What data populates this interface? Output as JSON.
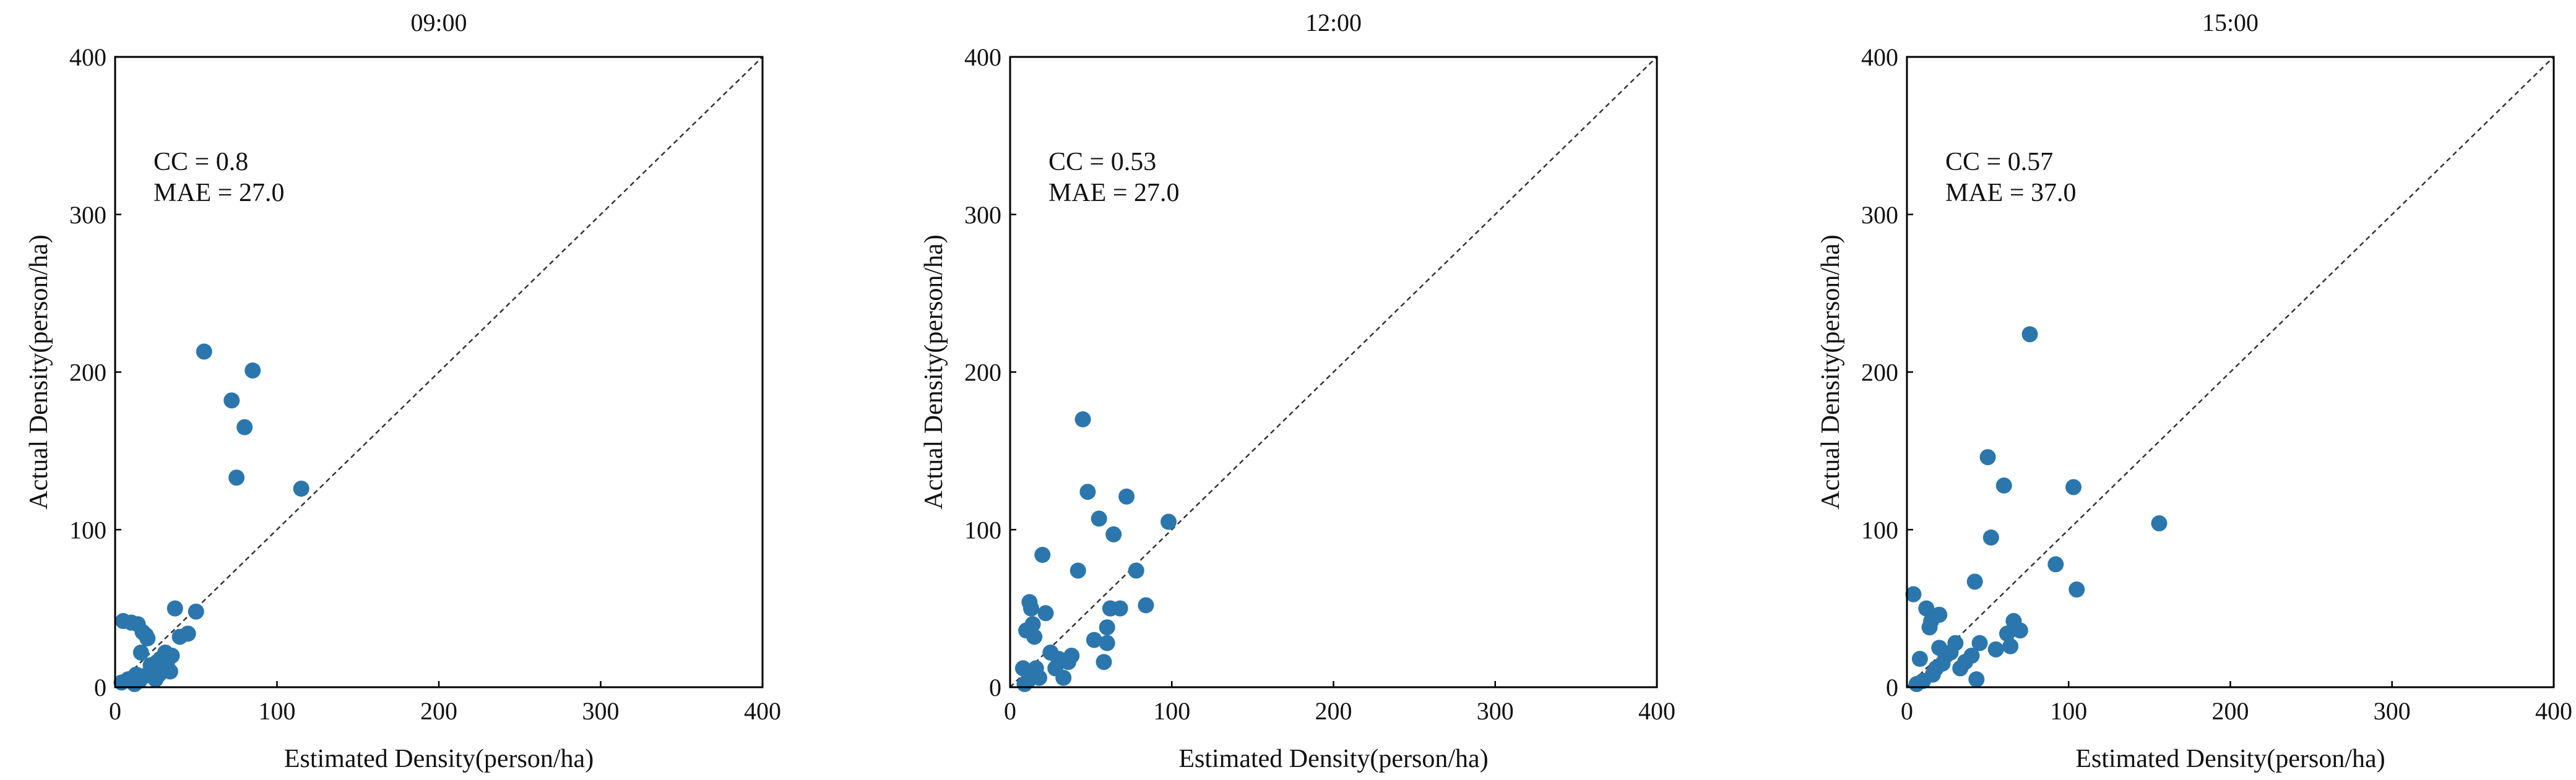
{
  "chart_data": [
    {
      "type": "scatter",
      "title": "09:00",
      "xlabel": "Estimated Density(person/ha)",
      "ylabel": "Actual Density(person/ha)",
      "xlim": [
        0,
        400
      ],
      "ylim": [
        0,
        400
      ],
      "xticks": [
        "0",
        "100",
        "200",
        "300",
        "400"
      ],
      "yticks": [
        "0",
        "100",
        "200",
        "300",
        "400"
      ],
      "reference_line": "y = x (dashed)",
      "annotations": [
        "CC = 0.8",
        "MAE = 27.0"
      ],
      "points": [
        [
          5,
          42
        ],
        [
          10,
          41
        ],
        [
          14,
          40
        ],
        [
          17,
          35
        ],
        [
          19,
          33
        ],
        [
          20,
          31
        ],
        [
          22,
          14
        ],
        [
          24,
          12
        ],
        [
          26,
          16
        ],
        [
          28,
          18
        ],
        [
          30,
          13
        ],
        [
          32,
          15
        ],
        [
          34,
          10
        ],
        [
          35,
          20
        ],
        [
          37,
          50
        ],
        [
          40,
          32
        ],
        [
          45,
          34
        ],
        [
          50,
          48
        ],
        [
          4,
          3
        ],
        [
          8,
          5
        ],
        [
          11,
          6
        ],
        [
          13,
          8
        ],
        [
          15,
          4
        ],
        [
          18,
          7
        ],
        [
          21,
          9
        ],
        [
          25,
          5
        ],
        [
          16,
          22
        ],
        [
          12,
          2
        ],
        [
          27,
          8
        ],
        [
          31,
          22
        ],
        [
          55,
          213
        ],
        [
          72,
          182
        ],
        [
          75,
          133
        ],
        [
          80,
          165
        ],
        [
          85,
          201
        ],
        [
          115,
          126
        ]
      ],
      "color": "#2b77ad"
    },
    {
      "type": "scatter",
      "title": "12:00",
      "xlabel": "Estimated Density(person/ha)",
      "ylabel": "Actual Density(person/ha)",
      "xlim": [
        0,
        400
      ],
      "ylim": [
        0,
        400
      ],
      "xticks": [
        "0",
        "100",
        "200",
        "300",
        "400"
      ],
      "yticks": [
        "0",
        "100",
        "200",
        "300",
        "400"
      ],
      "reference_line": "y = x (dashed)",
      "annotations": [
        "CC = 0.53",
        "MAE = 27.0"
      ],
      "points": [
        [
          9,
          2
        ],
        [
          10,
          36
        ],
        [
          12,
          54
        ],
        [
          13,
          50
        ],
        [
          14,
          40
        ],
        [
          15,
          32
        ],
        [
          16,
          12
        ],
        [
          18,
          6
        ],
        [
          20,
          84
        ],
        [
          22,
          47
        ],
        [
          25,
          22
        ],
        [
          28,
          12
        ],
        [
          30,
          18
        ],
        [
          33,
          6
        ],
        [
          36,
          16
        ],
        [
          38,
          20
        ],
        [
          42,
          74
        ],
        [
          45,
          170
        ],
        [
          48,
          124
        ],
        [
          52,
          30
        ],
        [
          55,
          107
        ],
        [
          58,
          16
        ],
        [
          60,
          38
        ],
        [
          62,
          50
        ],
        [
          64,
          97
        ],
        [
          68,
          50
        ],
        [
          72,
          121
        ],
        [
          78,
          74
        ],
        [
          84,
          52
        ],
        [
          98,
          105
        ],
        [
          8,
          12
        ],
        [
          11,
          4
        ],
        [
          60,
          28
        ],
        [
          62,
          50
        ]
      ],
      "color": "#2b77ad"
    },
    {
      "type": "scatter",
      "title": "15:00",
      "xlabel": "Estimated Density(person/ha)",
      "ylabel": "Actual Density(person/ha)",
      "xlim": [
        0,
        400
      ],
      "ylim": [
        0,
        400
      ],
      "xticks": [
        "0",
        "100",
        "200",
        "300",
        "400"
      ],
      "yticks": [
        "0",
        "100",
        "200",
        "300",
        "400"
      ],
      "reference_line": "y = x (dashed)",
      "annotations": [
        "CC = 0.57",
        "MAE = 37.0"
      ],
      "points": [
        [
          4,
          59
        ],
        [
          8,
          18
        ],
        [
          10,
          4
        ],
        [
          12,
          50
        ],
        [
          14,
          38
        ],
        [
          15,
          42
        ],
        [
          16,
          8
        ],
        [
          18,
          12
        ],
        [
          20,
          46
        ],
        [
          22,
          15
        ],
        [
          24,
          20
        ],
        [
          27,
          22
        ],
        [
          30,
          28
        ],
        [
          33,
          12
        ],
        [
          36,
          16
        ],
        [
          40,
          20
        ],
        [
          42,
          67
        ],
        [
          45,
          28
        ],
        [
          43,
          5
        ],
        [
          50,
          146
        ],
        [
          52,
          95
        ],
        [
          55,
          24
        ],
        [
          60,
          128
        ],
        [
          62,
          34
        ],
        [
          64,
          26
        ],
        [
          66,
          42
        ],
        [
          70,
          36
        ],
        [
          76,
          224
        ],
        [
          92,
          78
        ],
        [
          103,
          127
        ],
        [
          105,
          62
        ],
        [
          156,
          104
        ],
        [
          6,
          2
        ],
        [
          20,
          25
        ]
      ],
      "color": "#2b77ad"
    }
  ]
}
